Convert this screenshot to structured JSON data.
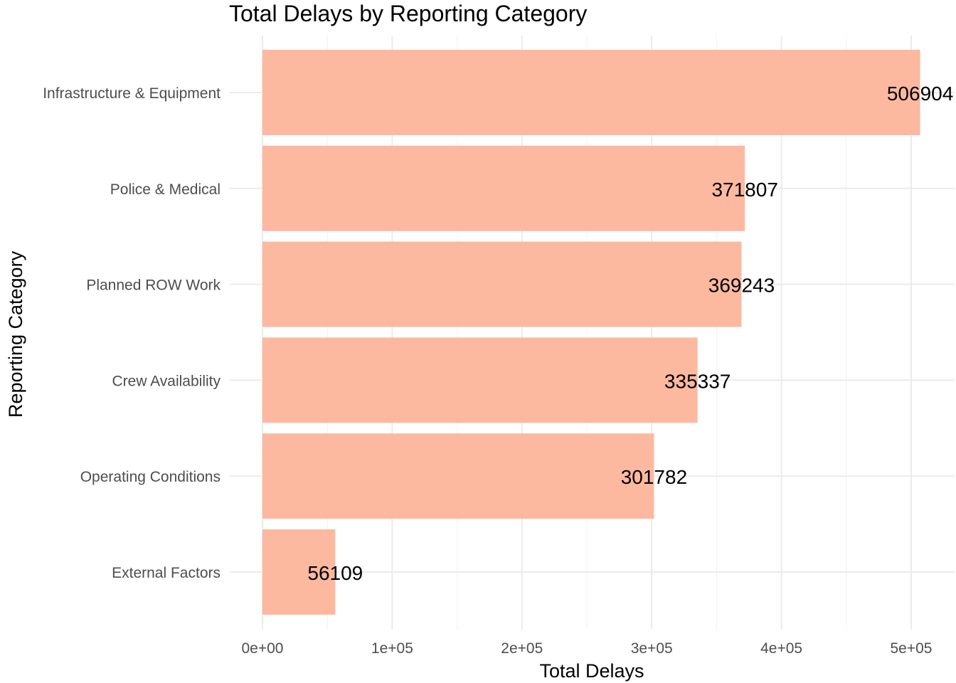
{
  "chart_data": {
    "type": "bar",
    "orientation": "horizontal",
    "title": "Total Delays by Reporting Category",
    "xlabel": "Total Delays",
    "ylabel": "Reporting Category",
    "categories": [
      "Infrastructure & Equipment",
      "Police & Medical",
      "Planned ROW Work",
      "Crew Availability",
      "Operating Conditions",
      "External Factors"
    ],
    "values": [
      506904,
      371807,
      369243,
      335337,
      301782,
      56109
    ],
    "data_labels": [
      "506904",
      "371807",
      "369243",
      "335337",
      "301782",
      "56109"
    ],
    "xlim": [
      0,
      530000
    ],
    "x_ticks": [
      0,
      100000,
      200000,
      300000,
      400000,
      500000
    ],
    "x_tick_labels": [
      "0e+00",
      "1e+05",
      "2e+05",
      "3e+05",
      "4e+05",
      "5e+05"
    ],
    "grid": true,
    "legend": "none",
    "bar_color": "#fcb9a0"
  }
}
